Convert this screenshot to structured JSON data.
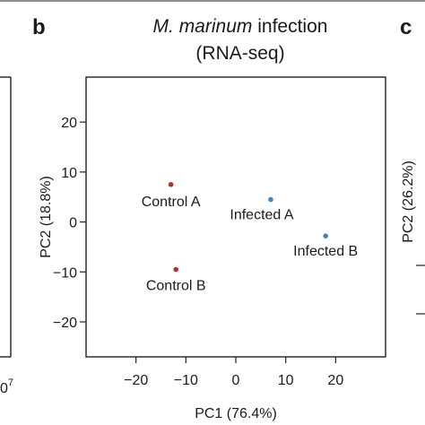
{
  "panel_b_letter": "b",
  "panel_c_letter": "c",
  "left_clip": {
    "tick_base": "0",
    "tick_exp": "7"
  },
  "right_clip": {
    "ylabel": "PC2 (26.2%)"
  },
  "chart_data": {
    "type": "scatter",
    "title_italic": "M. marinum",
    "title_rest": " infection",
    "subtitle": "(RNA-seq)",
    "xlabel": "PC1 (76.4%)",
    "ylabel": "PC2 (18.8%)",
    "xlim": [
      -30,
      30
    ],
    "ylim": [
      -27,
      29
    ],
    "xticks": [
      -20,
      -10,
      0,
      10,
      20
    ],
    "yticks": [
      20,
      10,
      0,
      -10,
      -20
    ],
    "grid": false,
    "points": [
      {
        "label": "Control A",
        "x": -13,
        "y": 7.5,
        "color": "#b5322a"
      },
      {
        "label": "Control B",
        "x": -12,
        "y": -9.5,
        "color": "#b5322a"
      },
      {
        "label": "Infected A",
        "x": 7,
        "y": 4.5,
        "color": "#4a7fc1"
      },
      {
        "label": "Infected B",
        "x": 18,
        "y": -2.8,
        "color": "#4a7fc1"
      }
    ]
  }
}
